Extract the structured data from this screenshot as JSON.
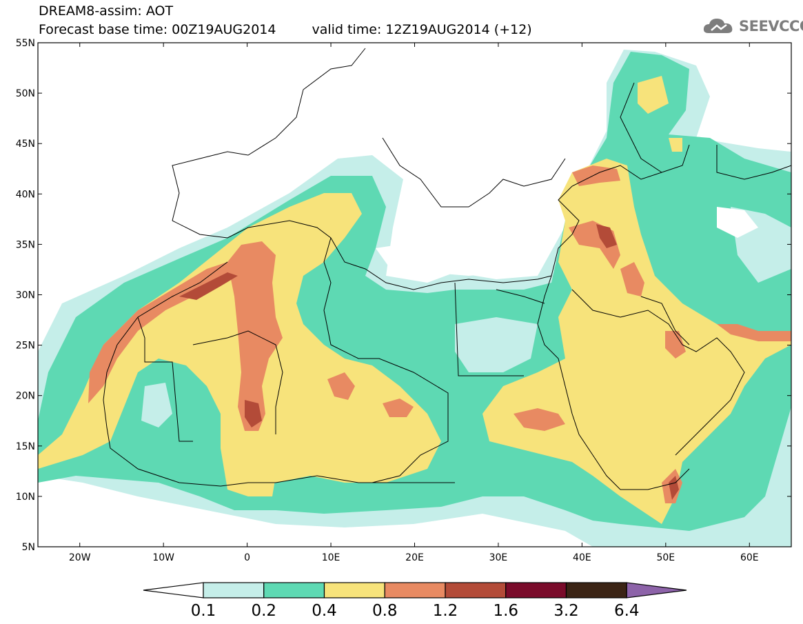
{
  "title": {
    "line1": "DREAM8-assim: AOT",
    "base_time": "Forecast base time: 00Z19AUG2014",
    "valid_time": "valid time: 12Z19AUG2014 (+12)"
  },
  "logo": {
    "text": "SEEVCCC",
    "icon": "cloud-logo-icon"
  },
  "map": {
    "lon_range": [
      -25,
      65
    ],
    "lat_range": [
      5,
      55
    ],
    "lat_ticks": [
      "5N",
      "10N",
      "15N",
      "20N",
      "25N",
      "30N",
      "35N",
      "40N",
      "45N",
      "50N",
      "55N"
    ],
    "lon_ticks": [
      "20W",
      "10W",
      "0",
      "10E",
      "20E",
      "30E",
      "40E",
      "50E",
      "60E"
    ]
  },
  "colorbar": {
    "levels": [
      "0.1",
      "0.2",
      "0.4",
      "0.8",
      "1.2",
      "1.6",
      "3.2",
      "6.4"
    ],
    "colors": [
      "#ffffff",
      "#c5eee9",
      "#5ed9b3",
      "#f7e37b",
      "#e88a62",
      "#b34b38",
      "#7a0b2a",
      "#3b2415",
      "#8d63a9"
    ]
  }
}
